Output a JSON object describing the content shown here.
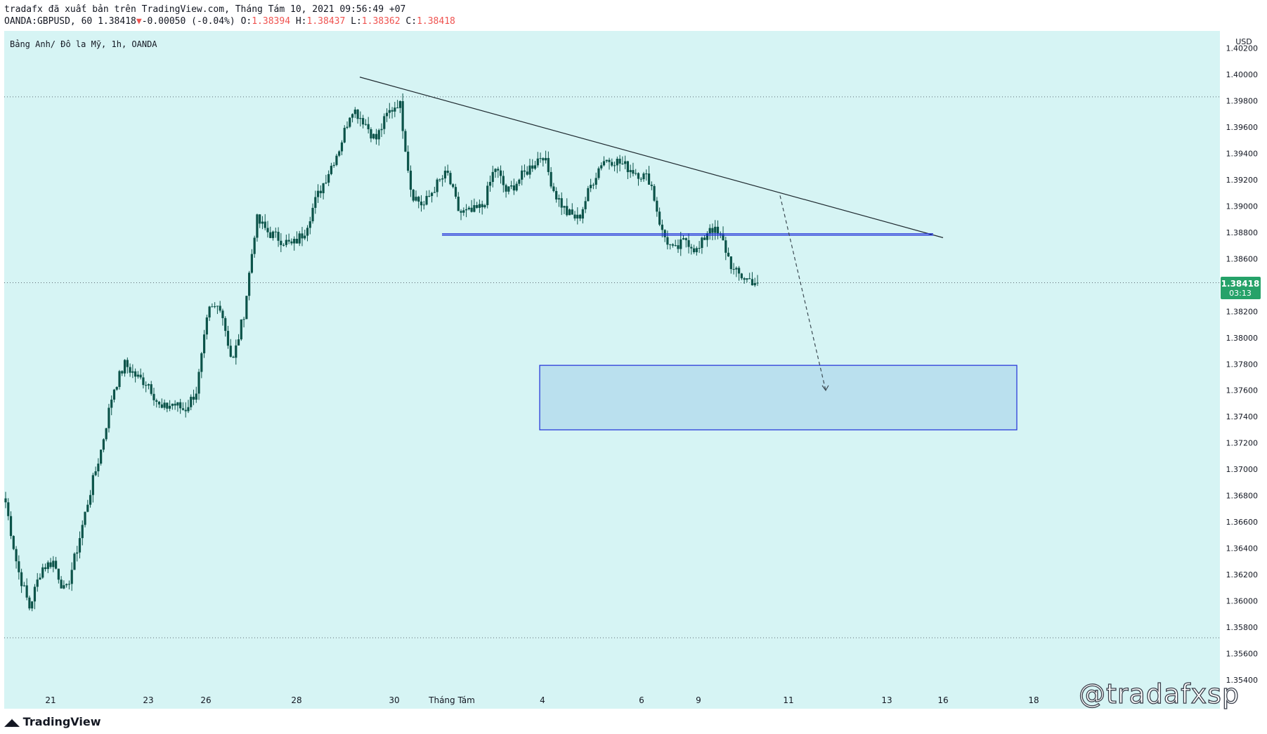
{
  "header": {
    "published_line": "tradafx đã xuất bản trên TradingView.com, Tháng Tám 10, 2021 09:56:49 +07",
    "symbol": "OANDA:GBPUSD, 60",
    "last": "1.38418",
    "change_arrow": "▼",
    "change": "-0.00050 (-0.04%)",
    "o_label": "O:",
    "o": "1.38394",
    "h_label": "H:",
    "h": "1.38437",
    "l_label": "L:",
    "l": "1.38362",
    "c_label": "C:",
    "c": "1.38418"
  },
  "chart_title": "Bảng Anh/ Đô la Mỹ, 1h, OANDA",
  "currency": "USD",
  "price_badge": {
    "price": "1.38418",
    "countdown": "03:13"
  },
  "brand": "TradingView",
  "watermark": "@tradafxsp",
  "colors": {
    "background": "#d6f4f4",
    "candles": "#0b5349",
    "badge": "#26a269",
    "zone_fill": "#bae0ee",
    "zone_border": "#1e2dd8"
  },
  "chart_data": {
    "type": "candlestick",
    "symbol": "GBPUSD",
    "ylim": [
      1.353,
      1.4023
    ],
    "yticks": [
      1.402,
      1.4,
      1.398,
      1.396,
      1.394,
      1.392,
      1.39,
      1.388,
      1.386,
      1.384,
      1.382,
      1.38,
      1.378,
      1.376,
      1.374,
      1.372,
      1.37,
      1.368,
      1.366,
      1.364,
      1.362,
      1.36,
      1.358,
      1.356,
      1.354
    ],
    "xtick_labels": [
      "21",
      "23",
      "26",
      "28",
      "30",
      "Tháng Tám",
      "4",
      "6",
      "9",
      "11",
      "13",
      "16",
      "18"
    ],
    "price_path": [
      {
        "x": "21",
        "y": 1.3675
      },
      {
        "x": "21",
        "y": 1.3625
      },
      {
        "x": "21",
        "y": 1.3595
      },
      {
        "x": "21",
        "y": 1.3625
      },
      {
        "x": "22",
        "y": 1.363
      },
      {
        "x": "22",
        "y": 1.3605
      },
      {
        "x": "22",
        "y": 1.364
      },
      {
        "x": "22",
        "y": 1.368
      },
      {
        "x": "23",
        "y": 1.3715
      },
      {
        "x": "23",
        "y": 1.376
      },
      {
        "x": "23",
        "y": 1.378
      },
      {
        "x": "23",
        "y": 1.377
      },
      {
        "x": "24",
        "y": 1.3765
      },
      {
        "x": "24",
        "y": 1.3745
      },
      {
        "x": "24",
        "y": 1.375
      },
      {
        "x": "26",
        "y": 1.3745
      },
      {
        "x": "26",
        "y": 1.376
      },
      {
        "x": "27",
        "y": 1.382
      },
      {
        "x": "27",
        "y": 1.3825
      },
      {
        "x": "27",
        "y": 1.378
      },
      {
        "x": "27",
        "y": 1.382
      },
      {
        "x": "28",
        "y": 1.389
      },
      {
        "x": "28",
        "y": 1.388
      },
      {
        "x": "28",
        "y": 1.3875
      },
      {
        "x": "28",
        "y": 1.387
      },
      {
        "x": "28",
        "y": 1.388
      },
      {
        "x": "29",
        "y": 1.3905
      },
      {
        "x": "29",
        "y": 1.3925
      },
      {
        "x": "29",
        "y": 1.3945
      },
      {
        "x": "30",
        "y": 1.3975
      },
      {
        "x": "30",
        "y": 1.3965
      },
      {
        "x": "30",
        "y": 1.395
      },
      {
        "x": "30",
        "y": 1.397
      },
      {
        "x": "30",
        "y": 1.398
      },
      {
        "x": "Tháng Tám",
        "y": 1.391
      },
      {
        "x": "Tháng Tám",
        "y": 1.39
      },
      {
        "x": "2",
        "y": 1.3915
      },
      {
        "x": "2",
        "y": 1.3925
      },
      {
        "x": "2",
        "y": 1.3895
      },
      {
        "x": "3",
        "y": 1.3895
      },
      {
        "x": "3",
        "y": 1.39
      },
      {
        "x": "3",
        "y": 1.393
      },
      {
        "x": "4",
        "y": 1.391
      },
      {
        "x": "4",
        "y": 1.392
      },
      {
        "x": "4",
        "y": 1.393
      },
      {
        "x": "5",
        "y": 1.394
      },
      {
        "x": "5",
        "y": 1.391
      },
      {
        "x": "5",
        "y": 1.3895
      },
      {
        "x": "5",
        "y": 1.389
      },
      {
        "x": "6",
        "y": 1.3915
      },
      {
        "x": "6",
        "y": 1.3935
      },
      {
        "x": "6",
        "y": 1.3935
      },
      {
        "x": "6",
        "y": 1.393
      },
      {
        "x": "7",
        "y": 1.3925
      },
      {
        "x": "8",
        "y": 1.392
      },
      {
        "x": "9",
        "y": 1.388
      },
      {
        "x": "9",
        "y": 1.3865
      },
      {
        "x": "9",
        "y": 1.3875
      },
      {
        "x": "9",
        "y": 1.3865
      },
      {
        "x": "10",
        "y": 1.3885
      },
      {
        "x": "10",
        "y": 1.3875
      },
      {
        "x": "10",
        "y": 1.385
      },
      {
        "x": "10",
        "y": 1.3845
      },
      {
        "x": "10",
        "y": 1.38418
      }
    ],
    "last_price": 1.38418,
    "session_high": 1.3983,
    "session_low": 1.3572,
    "drawings": {
      "trendline": [
        {
          "x": "29",
          "y": 1.3998
        },
        {
          "x": "16",
          "y": 1.3876
        }
      ],
      "support_line": {
        "y": 1.3878,
        "x_from": "31",
        "x_to": "15"
      },
      "projection_arrow": [
        {
          "x": "11",
          "y": 1.3908
        },
        {
          "x": "12",
          "y": 1.376
        }
      ],
      "target_zone": {
        "y_from": 1.373,
        "y_to": 1.3779,
        "x_from": "3",
        "x_to": "15"
      }
    },
    "xlabel": "",
    "ylabel": "",
    "grid": false
  }
}
